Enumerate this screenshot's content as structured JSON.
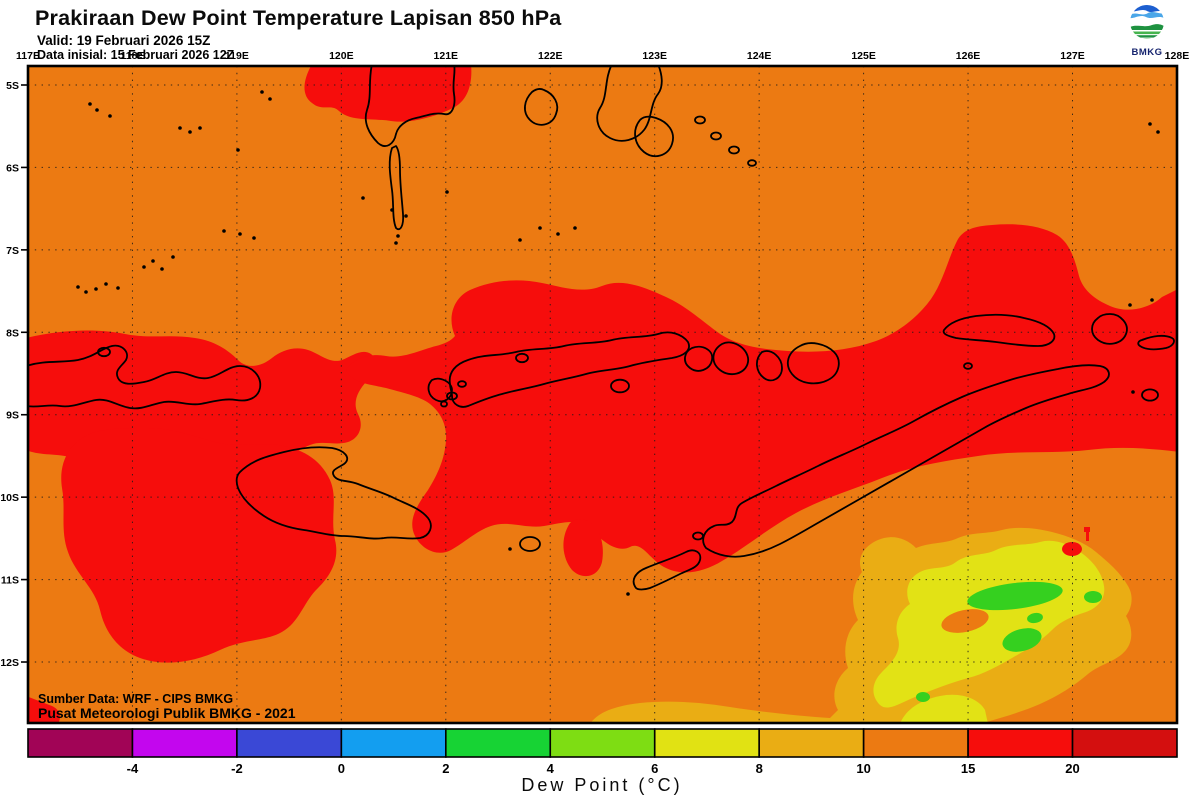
{
  "header": {
    "title": "Prakiraan Dew Point Temperature Lapisan 850 hPa",
    "valid_line": "Valid: 19 Februari 2026 15Z",
    "init_line": "Data inisial: 15 Februari 2026 12Z"
  },
  "logo": {
    "label": "BMKG",
    "colors": {
      "blue_dark": "#1d5fd0",
      "blue_light": "#4aa6e8",
      "green_dark": "#1e9240",
      "green_light": "#45b44e",
      "text": "#16246e"
    }
  },
  "map": {
    "lon_labels": [
      "117E",
      "118E",
      "119E",
      "120E",
      "121E",
      "122E",
      "123E",
      "124E",
      "125E",
      "126E",
      "127E",
      "128E"
    ],
    "lat_labels": [
      "5S",
      "6S",
      "7S",
      "8S",
      "9S",
      "10S",
      "11S",
      "12S"
    ],
    "source_line1": "Sumber Data: WRF - CIPS BMKG",
    "source_line2": "Pusat Meteorologi Publik BMKG - 2021",
    "fill_colors": {
      "orange": "#EC7A12",
      "red": "#F60D0C",
      "gold": "#EAAD14",
      "yellow": "#E2E215",
      "green": "#35D01F",
      "coast": "#000000"
    }
  },
  "colorbar": {
    "title": "Dew Point (°C)",
    "tick_labels": [
      "-4",
      "-2",
      "0",
      "2",
      "4",
      "6",
      "8",
      "10",
      "15",
      "20"
    ],
    "segment_colors": [
      "#A10456",
      "#C306EE",
      "#3A48D6",
      "#139EF0",
      "#17D334",
      "#7EDD13",
      "#E1E213",
      "#EAAD14",
      "#EC7A12",
      "#F60D0C",
      "#D40F0F"
    ]
  }
}
